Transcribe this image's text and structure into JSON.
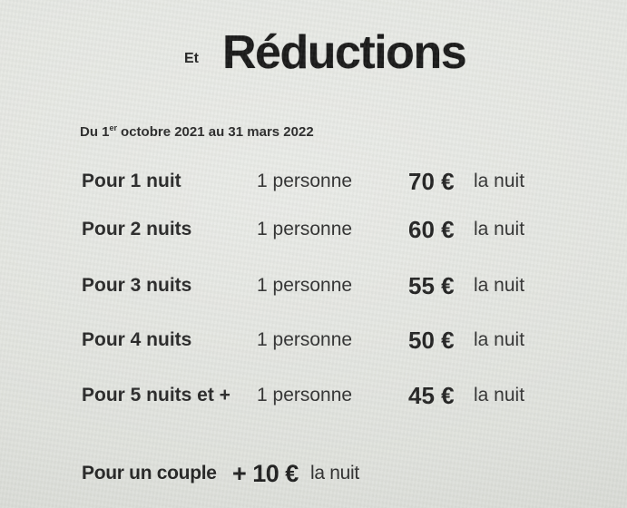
{
  "page": {
    "paper_color": "#e2e4df",
    "text_color": "#2a2a2a",
    "title_color": "#141414"
  },
  "document": {
    "title_prefix": "Et",
    "title": "Réductions",
    "period": {
      "prefix": "Du 1",
      "superscript": "er",
      "rest": "octobre 2021 au 31 mars 2022"
    },
    "rates": [
      {
        "label": "Pour 1 nuit",
        "occupancy": "1 personne",
        "price": "70 €",
        "unit": "la nuit"
      },
      {
        "label": "Pour 2 nuits",
        "occupancy": "1 personne",
        "price": "60 €",
        "unit": "la nuit"
      },
      {
        "label": "Pour 3 nuits",
        "occupancy": "1 personne",
        "price": "55 €",
        "unit": "la nuit"
      },
      {
        "label": "Pour 4 nuits",
        "occupancy": "1 personne",
        "price": "50 €",
        "unit": "la nuit"
      },
      {
        "label": "Pour 5 nuits et +",
        "occupancy": "1 personne",
        "price": "45 €",
        "unit": "la nuit"
      }
    ],
    "couple": {
      "label": "Pour un couple",
      "surcharge": "+ 10 €",
      "unit": "la nuit"
    }
  }
}
